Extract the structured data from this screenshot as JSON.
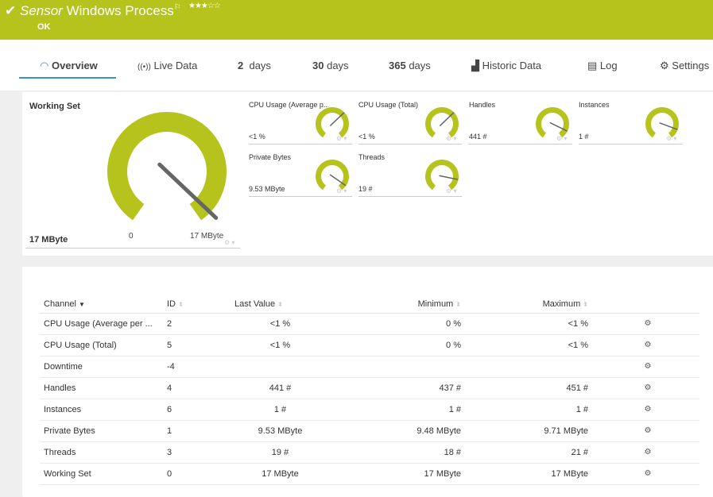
{
  "header": {
    "title_prefix": "Sensor",
    "title": "Windows Process",
    "status": "OK",
    "rating": "★★★☆☆",
    "flag": "⚐"
  },
  "tabs": [
    {
      "icon": "overview-gauge-icon",
      "label": "Overview",
      "active": true
    },
    {
      "icon": "live-data-icon",
      "label": "Live Data"
    },
    {
      "num": "2",
      "label": "days"
    },
    {
      "num": "30",
      "label": "days"
    },
    {
      "num": "365",
      "label": "days"
    },
    {
      "icon": "historic-data-icon",
      "label": "Historic Data"
    },
    {
      "icon": "log-icon",
      "label": "Log"
    },
    {
      "icon": "gear-icon",
      "label": "Settings"
    }
  ],
  "main_gauge": {
    "label": "Working Set",
    "value": "17 MByte",
    "min": "0",
    "max": "17 MByte",
    "needle_fraction": 0.96
  },
  "gauges": [
    {
      "name": "CPU Usage (Average p...",
      "value": "<1 %",
      "needle_fraction": 0.66
    },
    {
      "name": "CPU Usage (Total)",
      "value": "<1 %",
      "needle_fraction": 0.66
    },
    {
      "name": "Handles",
      "value": "441 #",
      "needle_fraction": 0.9
    },
    {
      "name": "Instances",
      "value": "1 #",
      "needle_fraction": 0.88
    },
    {
      "name": "Private Bytes",
      "value": "9.53 MByte",
      "needle_fraction": 0.93
    },
    {
      "name": "Threads",
      "value": "19 #",
      "needle_fraction": 0.85
    }
  ],
  "accent": "#b6c31c",
  "table": {
    "headers": [
      "Channel",
      "ID",
      "Last Value",
      "Minimum",
      "Maximum"
    ],
    "rows": [
      [
        "CPU Usage (Average per ...",
        "2",
        "<1 %",
        "0 %",
        "<1 %"
      ],
      [
        "CPU Usage (Total)",
        "5",
        "<1 %",
        "0 %",
        "<1 %"
      ],
      [
        "Downtime",
        "-4",
        "",
        "",
        ""
      ],
      [
        "Handles",
        "4",
        "441 #",
        "437 #",
        "451 #"
      ],
      [
        "Instances",
        "6",
        "1 #",
        "1 #",
        "1 #"
      ],
      [
        "Private Bytes",
        "1",
        "9.53 MByte",
        "9.48 MByte",
        "9.71 MByte"
      ],
      [
        "Threads",
        "3",
        "19 #",
        "18 #",
        "21 #"
      ],
      [
        "Working Set",
        "0",
        "17 MByte",
        "17 MByte",
        "17 MByte"
      ]
    ]
  }
}
